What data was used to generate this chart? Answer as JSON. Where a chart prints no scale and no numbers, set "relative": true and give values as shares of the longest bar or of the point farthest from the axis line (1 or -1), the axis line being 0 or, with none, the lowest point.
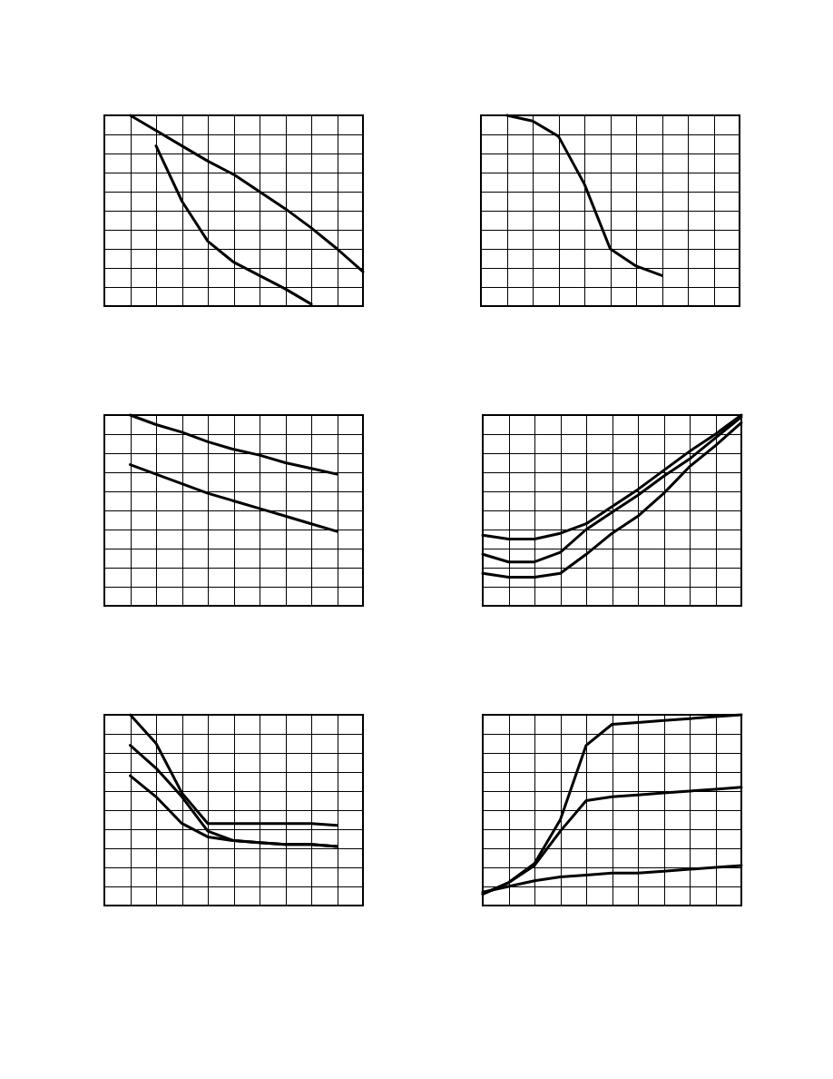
{
  "chart_data": [
    {
      "type": "line",
      "relative": true,
      "grid": true,
      "line_style": "solid",
      "categories": [
        null,
        null,
        null,
        null,
        null,
        null,
        null,
        null,
        null,
        null,
        null
      ],
      "series": [
        {
          "color": "#000000",
          "values": [
            null,
            1,
            0.92,
            0.84,
            0.76,
            0.69,
            0.6,
            0.51,
            0.41,
            0.3,
            0.18
          ]
        },
        {
          "color": "#000000",
          "values": [
            null,
            null,
            0.84,
            0.55,
            0.34,
            0.23,
            0.16,
            0.09,
            0.01,
            null,
            null
          ]
        }
      ]
    },
    {
      "type": "line",
      "relative": true,
      "grid": true,
      "line_style": "solid",
      "categories": [
        null,
        null,
        null,
        null,
        null,
        null,
        null,
        null,
        null,
        null,
        null
      ],
      "series": [
        {
          "color": "#000000",
          "values": [
            null,
            1,
            0.97,
            0.89,
            0.64,
            0.3,
            0.21,
            0.16,
            null,
            null,
            null
          ]
        }
      ]
    },
    {
      "type": "line",
      "relative": true,
      "grid": true,
      "line_style": "solid",
      "categories": [
        null,
        null,
        null,
        null,
        null,
        null,
        null,
        null,
        null,
        null,
        null
      ],
      "series": [
        {
          "color": "#000000",
          "values": [
            null,
            1,
            0.95,
            0.91,
            0.86,
            0.82,
            0.79,
            0.75,
            0.72,
            0.69,
            null
          ]
        },
        {
          "color": "#000000",
          "values": [
            null,
            0.74,
            0.69,
            0.64,
            0.59,
            0.55,
            0.51,
            0.47,
            0.43,
            0.39,
            null
          ]
        }
      ]
    },
    {
      "type": "line",
      "relative": true,
      "grid": true,
      "line_style": "solid",
      "categories": [
        null,
        null,
        null,
        null,
        null,
        null,
        null,
        null,
        null,
        null,
        null
      ],
      "series": [
        {
          "color": "#000000",
          "values": [
            0.37,
            0.35,
            0.35,
            0.38,
            0.43,
            0.52,
            0.61,
            0.71,
            0.81,
            0.9,
            1
          ]
        },
        {
          "color": "#000000",
          "values": [
            0.27,
            0.23,
            0.23,
            0.28,
            0.4,
            0.49,
            0.58,
            0.68,
            0.77,
            0.88,
            0.99
          ]
        },
        {
          "color": "#000000",
          "values": [
            0.17,
            0.15,
            0.15,
            0.17,
            0.27,
            0.38,
            0.47,
            0.59,
            0.73,
            0.84,
            0.96
          ]
        }
      ]
    },
    {
      "type": "line",
      "relative": true,
      "grid": true,
      "line_style": "solid",
      "categories": [
        null,
        null,
        null,
        null,
        null,
        null,
        null,
        null,
        null,
        null,
        null
      ],
      "series": [
        {
          "color": "#000000",
          "values": [
            null,
            1,
            0.85,
            0.59,
            0.43,
            0.43,
            0.43,
            0.43,
            0.43,
            0.42,
            null
          ]
        },
        {
          "color": "#000000",
          "values": [
            null,
            0.84,
            0.72,
            0.57,
            0.39,
            0.34,
            0.33,
            0.32,
            0.32,
            0.31,
            null
          ]
        },
        {
          "color": "#000000",
          "values": [
            null,
            0.68,
            0.57,
            0.43,
            0.36,
            0.34,
            0.33,
            0.32,
            0.32,
            0.31,
            null
          ]
        }
      ]
    },
    {
      "type": "line",
      "relative": true,
      "grid": true,
      "line_style": "solid",
      "categories": [
        null,
        null,
        null,
        null,
        null,
        null,
        null,
        null,
        null,
        null,
        null
      ],
      "series": [
        {
          "color": "#000000",
          "values": [
            0.06,
            0.12,
            0.22,
            0.45,
            0.84,
            0.95,
            0.96,
            0.97,
            0.98,
            0.99,
            1
          ]
        },
        {
          "color": "#000000",
          "values": [
            0.06,
            0.12,
            0.21,
            0.39,
            0.55,
            0.57,
            0.58,
            0.59,
            0.6,
            0.61,
            0.62
          ]
        },
        {
          "color": "#000000",
          "values": [
            0.07,
            0.1,
            0.13,
            0.15,
            0.16,
            0.17,
            0.17,
            0.18,
            0.19,
            0.2,
            0.21
          ]
        }
      ]
    }
  ]
}
